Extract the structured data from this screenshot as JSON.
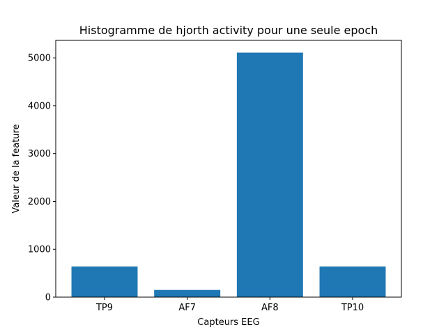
{
  "chart_data": {
    "type": "bar",
    "title": "Histogramme de hjorth activity pour une seule epoch",
    "xlabel": "Capteurs EEG",
    "ylabel": "Valeur de la feature",
    "categories": [
      "TP9",
      "AF7",
      "AF8",
      "TP10"
    ],
    "values": [
      640,
      150,
      5110,
      640
    ],
    "ylim": [
      0,
      5366
    ],
    "yticks": [
      0,
      1000,
      2000,
      3000,
      4000,
      5000
    ],
    "bar_color": "#1f77b4",
    "grid": false,
    "legend": "none"
  }
}
